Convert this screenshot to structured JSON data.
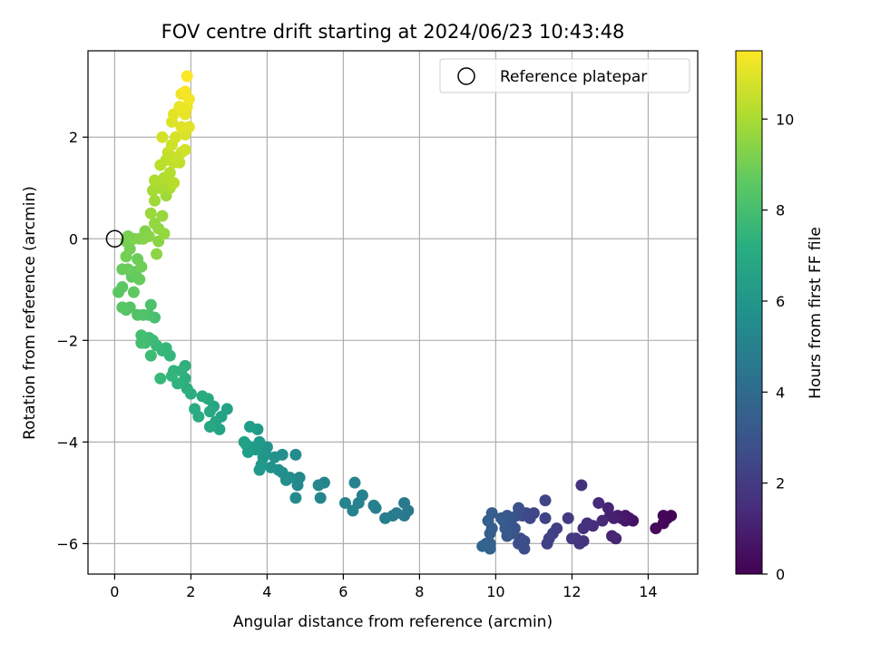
{
  "chart_data": {
    "type": "scatter",
    "title": "FOV centre drift starting at 2024/06/23 10:43:48",
    "xlabel": "Angular distance from reference (arcmin)",
    "ylabel": "Rotation from reference (arcmin)",
    "xlim": [
      -0.7,
      15.3
    ],
    "ylim": [
      -6.6,
      3.7
    ],
    "xticks": [
      0,
      2,
      4,
      6,
      8,
      10,
      12,
      14
    ],
    "yticks": [
      -6,
      -4,
      -2,
      0,
      2
    ],
    "x_tick_labels": [
      "0",
      "2",
      "4",
      "6",
      "8",
      "10",
      "12",
      "14"
    ],
    "y_tick_labels": [
      "−6",
      "−4",
      "−2",
      "0",
      "2"
    ],
    "grid": true,
    "legend_position": "top-right",
    "legend": [
      {
        "label": "Reference platepar",
        "marker": "open-circle"
      }
    ],
    "reference_point": {
      "x": 0,
      "y": 0
    },
    "colorbar": {
      "label": "Hours from first FF file",
      "range": [
        0,
        11.5
      ],
      "ticks": [
        0,
        2,
        4,
        6,
        8,
        10
      ],
      "tick_labels": [
        "0",
        "2",
        "4",
        "6",
        "8",
        "10"
      ],
      "colormap": "viridis"
    },
    "points": [
      [
        14.6,
        -5.45,
        0.05
      ],
      [
        14.5,
        -5.5,
        0.1
      ],
      [
        14.4,
        -5.45,
        0.15
      ],
      [
        14.4,
        -5.6,
        0.2
      ],
      [
        14.2,
        -5.7,
        0.3
      ],
      [
        13.6,
        -5.55,
        0.5
      ],
      [
        13.5,
        -5.5,
        0.6
      ],
      [
        13.4,
        -5.45,
        0.7
      ],
      [
        13.4,
        -5.55,
        0.75
      ],
      [
        13.3,
        -5.5,
        0.8
      ],
      [
        13.2,
        -5.45,
        0.9
      ],
      [
        13.1,
        -5.5,
        1.0
      ],
      [
        13.0,
        -5.45,
        1.05
      ],
      [
        12.95,
        -5.3,
        1.1
      ],
      [
        13.05,
        -5.85,
        1.15
      ],
      [
        13.15,
        -5.9,
        1.2
      ],
      [
        12.8,
        -5.55,
        1.3
      ],
      [
        12.7,
        -5.2,
        1.4
      ],
      [
        12.55,
        -5.65,
        1.5
      ],
      [
        12.4,
        -5.6,
        1.55
      ],
      [
        12.3,
        -5.7,
        1.6
      ],
      [
        12.25,
        -4.85,
        1.65
      ],
      [
        12.3,
        -5.95,
        1.7
      ],
      [
        12.2,
        -6.0,
        1.75
      ],
      [
        12.1,
        -5.9,
        1.8
      ],
      [
        12.0,
        -5.9,
        1.9
      ],
      [
        11.9,
        -5.5,
        2.0
      ],
      [
        11.6,
        -5.7,
        2.1
      ],
      [
        11.5,
        -5.8,
        2.15
      ],
      [
        11.4,
        -5.9,
        2.2
      ],
      [
        11.35,
        -6.0,
        2.25
      ],
      [
        11.3,
        -5.5,
        2.3
      ],
      [
        11.3,
        -5.15,
        2.35
      ],
      [
        11.0,
        -5.4,
        2.4
      ],
      [
        10.9,
        -5.5,
        2.45
      ],
      [
        10.8,
        -5.4,
        2.5
      ],
      [
        10.7,
        -5.45,
        2.55
      ],
      [
        10.75,
        -5.95,
        2.6
      ],
      [
        10.75,
        -6.1,
        2.65
      ],
      [
        10.65,
        -5.9,
        2.7
      ],
      [
        10.6,
        -6.0,
        2.75
      ],
      [
        10.6,
        -5.3,
        2.8
      ],
      [
        10.55,
        -5.45,
        2.85
      ],
      [
        10.5,
        -5.7,
        2.9
      ],
      [
        10.45,
        -5.8,
        2.95
      ],
      [
        10.4,
        -5.6,
        3.0
      ],
      [
        10.35,
        -5.5,
        3.05
      ],
      [
        10.3,
        -5.45,
        3.1
      ],
      [
        10.3,
        -5.85,
        3.15
      ],
      [
        10.25,
        -5.7,
        3.2
      ],
      [
        10.2,
        -5.55,
        3.25
      ],
      [
        10.15,
        -5.5,
        3.3
      ],
      [
        9.9,
        -5.4,
        3.35
      ],
      [
        9.9,
        -5.7,
        3.4
      ],
      [
        9.85,
        -5.8,
        3.45
      ],
      [
        9.8,
        -5.55,
        3.5
      ],
      [
        9.85,
        -6.0,
        3.55
      ],
      [
        9.85,
        -6.1,
        3.6
      ],
      [
        9.75,
        -6.0,
        3.65
      ],
      [
        9.65,
        -6.05,
        3.7
      ],
      [
        7.7,
        -5.35,
        4.6
      ],
      [
        7.6,
        -5.2,
        4.65
      ],
      [
        7.6,
        -5.45,
        4.7
      ],
      [
        7.4,
        -5.4,
        4.75
      ],
      [
        7.3,
        -5.45,
        4.8
      ],
      [
        7.1,
        -5.5,
        4.85
      ],
      [
        6.85,
        -5.3,
        4.9
      ],
      [
        6.8,
        -5.25,
        4.95
      ],
      [
        6.5,
        -5.05,
        5.0
      ],
      [
        6.4,
        -5.2,
        5.05
      ],
      [
        6.3,
        -4.8,
        5.1
      ],
      [
        6.25,
        -5.35,
        5.15
      ],
      [
        6.05,
        -5.2,
        5.2
      ],
      [
        5.5,
        -4.8,
        5.25
      ],
      [
        5.4,
        -5.1,
        5.3
      ],
      [
        5.35,
        -4.85,
        5.35
      ],
      [
        4.85,
        -4.7,
        5.4
      ],
      [
        4.8,
        -4.85,
        5.45
      ],
      [
        4.75,
        -5.1,
        5.5
      ],
      [
        4.75,
        -4.25,
        5.55
      ],
      [
        4.6,
        -4.7,
        5.6
      ],
      [
        4.5,
        -4.75,
        5.65
      ],
      [
        4.4,
        -4.6,
        5.7
      ],
      [
        4.4,
        -4.25,
        5.75
      ],
      [
        4.3,
        -4.55,
        5.8
      ],
      [
        4.2,
        -4.3,
        5.85
      ],
      [
        4.1,
        -4.5,
        5.9
      ],
      [
        4.0,
        -4.1,
        5.95
      ],
      [
        3.95,
        -4.2,
        6.0
      ],
      [
        3.9,
        -4.3,
        6.05
      ],
      [
        3.85,
        -4.45,
        6.1
      ],
      [
        3.8,
        -4.0,
        6.15
      ],
      [
        3.8,
        -4.55,
        6.2
      ],
      [
        3.75,
        -3.75,
        6.25
      ],
      [
        3.7,
        -4.15,
        6.3
      ],
      [
        3.6,
        -4.1,
        6.35
      ],
      [
        3.55,
        -3.7,
        6.4
      ],
      [
        3.5,
        -4.2,
        6.45
      ],
      [
        3.45,
        -4.05,
        6.5
      ],
      [
        3.4,
        -4.0,
        6.55
      ],
      [
        2.95,
        -3.35,
        6.6
      ],
      [
        2.8,
        -3.5,
        6.65
      ],
      [
        2.75,
        -3.75,
        6.7
      ],
      [
        2.65,
        -3.6,
        6.75
      ],
      [
        2.6,
        -3.3,
        6.8
      ],
      [
        2.5,
        -3.7,
        6.85
      ],
      [
        2.5,
        -3.4,
        6.9
      ],
      [
        2.45,
        -3.15,
        6.95
      ],
      [
        2.3,
        -3.1,
        7.0
      ],
      [
        2.2,
        -3.5,
        7.05
      ],
      [
        2.1,
        -3.35,
        7.1
      ],
      [
        2.0,
        -3.05,
        7.15
      ],
      [
        1.9,
        -2.95,
        7.2
      ],
      [
        1.85,
        -2.75,
        7.25
      ],
      [
        1.85,
        -2.5,
        7.3
      ],
      [
        1.75,
        -2.6,
        7.35
      ],
      [
        1.65,
        -2.85,
        7.4
      ],
      [
        1.55,
        -2.6,
        7.45
      ],
      [
        1.5,
        -2.7,
        7.5
      ],
      [
        1.45,
        -2.3,
        7.55
      ],
      [
        1.35,
        -2.15,
        7.6
      ],
      [
        1.25,
        -2.2,
        7.65
      ],
      [
        1.2,
        -2.75,
        7.7
      ],
      [
        1.1,
        -2.1,
        7.75
      ],
      [
        1.0,
        -2.0,
        7.8
      ],
      [
        0.95,
        -2.3,
        7.85
      ],
      [
        0.9,
        -1.95,
        7.9
      ],
      [
        0.8,
        -2.05,
        7.95
      ],
      [
        0.7,
        -1.9,
        8.0
      ],
      [
        0.7,
        -2.05,
        8.05
      ],
      [
        1.05,
        -1.55,
        8.1
      ],
      [
        0.9,
        -1.5,
        8.15
      ],
      [
        0.95,
        -1.3,
        8.2
      ],
      [
        0.75,
        -1.5,
        8.25
      ],
      [
        0.6,
        -1.5,
        8.3
      ],
      [
        0.4,
        -1.35,
        8.35
      ],
      [
        0.3,
        -1.4,
        8.4
      ],
      [
        0.2,
        -1.35,
        8.45
      ],
      [
        0.1,
        -1.05,
        8.5
      ],
      [
        0.2,
        -0.95,
        8.55
      ],
      [
        0.5,
        -1.05,
        8.6
      ],
      [
        0.45,
        -0.75,
        8.65
      ],
      [
        0.55,
        -0.65,
        8.7
      ],
      [
        0.65,
        -0.8,
        8.75
      ],
      [
        0.2,
        -0.6,
        8.8
      ],
      [
        0.35,
        -0.6,
        8.85
      ],
      [
        0.6,
        -0.4,
        8.9
      ],
      [
        0.7,
        -0.55,
        8.95
      ],
      [
        0.3,
        -0.35,
        9.0
      ],
      [
        0.4,
        -0.2,
        9.05
      ],
      [
        0.3,
        -0.05,
        9.1
      ],
      [
        0.35,
        0.05,
        9.15
      ],
      [
        0.5,
        0.0,
        9.2
      ],
      [
        0.65,
        0.0,
        9.25
      ],
      [
        0.8,
        0.15,
        9.3
      ],
      [
        0.75,
        0.0,
        9.35
      ],
      [
        0.9,
        0.05,
        9.4
      ],
      [
        1.15,
        -0.05,
        9.45
      ],
      [
        1.1,
        -0.3,
        9.5
      ],
      [
        1.15,
        0.2,
        9.55
      ],
      [
        1.05,
        0.3,
        9.6
      ],
      [
        1.3,
        0.1,
        9.65
      ],
      [
        1.25,
        0.45,
        9.7
      ],
      [
        0.95,
        0.5,
        9.75
      ],
      [
        1.35,
        0.85,
        9.8
      ],
      [
        1.05,
        0.75,
        9.85
      ],
      [
        1.15,
        1.0,
        9.9
      ],
      [
        1.0,
        0.95,
        9.95
      ],
      [
        1.25,
        1.0,
        10.0
      ],
      [
        1.45,
        1.0,
        10.05
      ],
      [
        1.05,
        1.15,
        10.1
      ],
      [
        1.3,
        1.2,
        10.15
      ],
      [
        1.45,
        1.3,
        10.2
      ],
      [
        1.55,
        1.1,
        10.25
      ],
      [
        1.2,
        1.45,
        10.3
      ],
      [
        1.35,
        1.55,
        10.35
      ],
      [
        1.55,
        1.5,
        10.4
      ],
      [
        1.7,
        1.5,
        10.45
      ],
      [
        1.4,
        1.7,
        10.5
      ],
      [
        1.6,
        1.6,
        10.55
      ],
      [
        1.75,
        1.7,
        10.6
      ],
      [
        1.5,
        1.85,
        10.65
      ],
      [
        1.85,
        1.75,
        10.7
      ],
      [
        1.25,
        2.0,
        10.75
      ],
      [
        1.6,
        2.0,
        10.8
      ],
      [
        1.85,
        2.05,
        10.85
      ],
      [
        1.5,
        2.3,
        10.9
      ],
      [
        1.75,
        2.2,
        10.95
      ],
      [
        1.95,
        2.2,
        11.0
      ],
      [
        1.55,
        2.45,
        11.05
      ],
      [
        1.85,
        2.45,
        11.1
      ],
      [
        1.7,
        2.6,
        11.15
      ],
      [
        1.9,
        2.6,
        11.2
      ],
      [
        1.75,
        2.85,
        11.25
      ],
      [
        1.95,
        2.75,
        11.3
      ],
      [
        1.85,
        2.9,
        11.35
      ],
      [
        1.9,
        3.2,
        11.45
      ]
    ]
  }
}
